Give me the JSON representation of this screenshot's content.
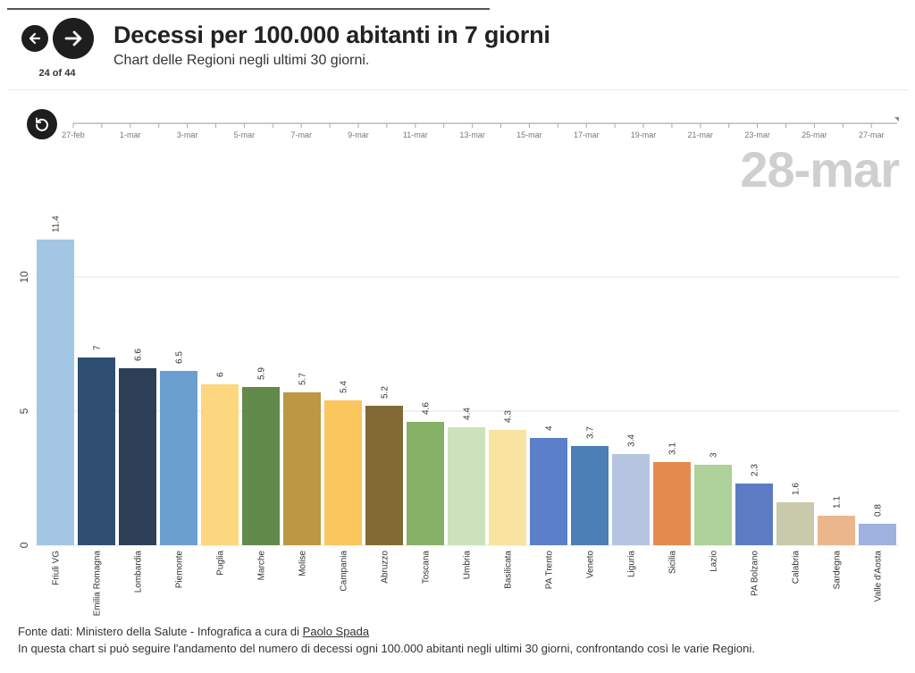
{
  "header": {
    "title": "Decessi per 100.000 abitanti in 7 giorni",
    "subtitle": "Chart delle Regioni negli ultimi 30 giorni.",
    "counter": "24 of 44"
  },
  "icons": {
    "prev": "arrow-left-icon",
    "next": "arrow-right-icon",
    "replay": "replay-icon"
  },
  "timeline": {
    "ticks": [
      "27-feb",
      "1-mar",
      "3-mar",
      "5-mar",
      "7-mar",
      "9-mar",
      "11-mar",
      "13-mar",
      "15-mar",
      "17-mar",
      "19-mar",
      "21-mar",
      "23-mar",
      "25-mar",
      "27-mar"
    ],
    "current_date": "28-mar"
  },
  "chart_data": {
    "type": "bar",
    "title": "Decessi per 100.000 abitanti in 7 giorni",
    "categories": [
      "Friuli VG",
      "Emilia Romagna",
      "Lombardia",
      "Piemonte",
      "Puglia",
      "Marche",
      "Molise",
      "Campania",
      "Abruzzo",
      "Toscana",
      "Umbria",
      "Basilicata",
      "PA Trento",
      "Veneto",
      "Liguria",
      "Sicilia",
      "Lazio",
      "PA Bolzano",
      "Calabria",
      "Sardegna",
      "Valle d'Aosta"
    ],
    "values": [
      11.4,
      7,
      6.6,
      6.5,
      6,
      5.9,
      5.7,
      5.4,
      5.2,
      4.6,
      4.4,
      4.3,
      4,
      3.7,
      3.4,
      3.1,
      3,
      2.3,
      1.6,
      1.1,
      0.8
    ],
    "value_labels": [
      "11.4",
      "7",
      "6.6",
      "6.5",
      "6",
      "5.9",
      "5.7",
      "5.4",
      "5.2",
      "4.6",
      "4.4",
      "4.3",
      "4",
      "3.7",
      "3.4",
      "3.1",
      "3",
      "2.3",
      "1.6",
      "1.1",
      "0.8"
    ],
    "colors": [
      "#a3c6e4",
      "#2f4e72",
      "#2d3f57",
      "#6a9fd0",
      "#fcd77f",
      "#628a4a",
      "#bc9744",
      "#fbc65b",
      "#836a32",
      "#86b066",
      "#cbe2bd",
      "#f9e3a1",
      "#5b7fc8",
      "#4b7fb5",
      "#b6c4e2",
      "#e58a4e",
      "#aed09a",
      "#5c7bc2",
      "#c9c9ac",
      "#ecb68d",
      "#9fb1dd"
    ],
    "yticks": [
      0,
      5,
      10
    ],
    "ylim": [
      0,
      12.6
    ],
    "xlabel": "",
    "ylabel": "",
    "grid": true
  },
  "footer": {
    "source_prefix": "Fonte dati: Ministero della Salute - Infografica a cura di ",
    "author": "Paolo Spada",
    "note": "In questa chart si può seguire l'andamento del numero di decessi ogni 100.000 abitanti negli ultimi 30 giorni, confrontando così le varie Regioni."
  }
}
